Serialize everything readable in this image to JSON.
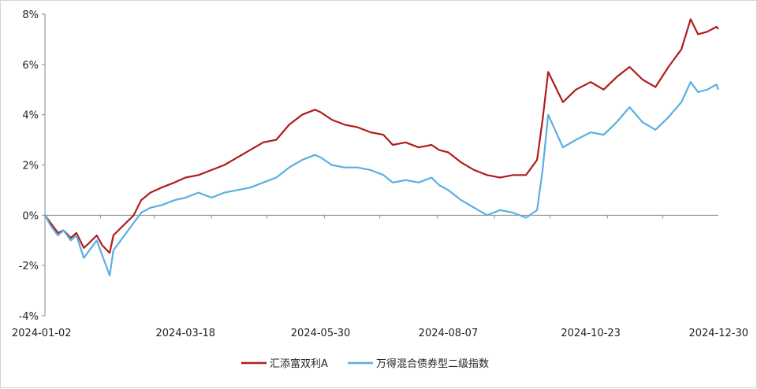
{
  "chart_data": {
    "type": "line",
    "title": "",
    "xlabel": "",
    "ylabel": "",
    "ylim": [
      -4,
      8
    ],
    "yticks": [
      -4,
      -2,
      0,
      2,
      4,
      6,
      8
    ],
    "ytick_labels": [
      "-4%",
      "-2%",
      "0%",
      "2%",
      "4%",
      "6%",
      "8%"
    ],
    "xlim": [
      "2024-01-02",
      "2024-12-31"
    ],
    "xticks": [
      {
        "date": "2024-01-02",
        "label": "2024-01-02"
      },
      {
        "date": "2024-03-18",
        "label": "2024-03-18"
      },
      {
        "date": "2024-05-30",
        "label": "2024-05-30"
      },
      {
        "date": "2024-08-07",
        "label": "2024-08-07"
      },
      {
        "date": "2024-10-23",
        "label": "2024-10-23"
      },
      {
        "date": "2024-12-30",
        "label": "2024-12-30"
      }
    ],
    "grid": false,
    "legend_position": "bottom",
    "series": [
      {
        "name": "汇添富双利A",
        "color": "#b01c1c",
        "points": [
          [
            "2024-01-02",
            0.0
          ],
          [
            "2024-01-05",
            -0.3
          ],
          [
            "2024-01-09",
            -0.7
          ],
          [
            "2024-01-12",
            -0.6
          ],
          [
            "2024-01-16",
            -0.9
          ],
          [
            "2024-01-19",
            -0.7
          ],
          [
            "2024-01-23",
            -1.3
          ],
          [
            "2024-01-26",
            -1.1
          ],
          [
            "2024-01-30",
            -0.8
          ],
          [
            "2024-02-02",
            -1.2
          ],
          [
            "2024-02-06",
            -1.5
          ],
          [
            "2024-02-08",
            -0.8
          ],
          [
            "2024-02-19",
            0.0
          ],
          [
            "2024-02-23",
            0.6
          ],
          [
            "2024-02-28",
            0.9
          ],
          [
            "2024-03-05",
            1.1
          ],
          [
            "2024-03-12",
            1.3
          ],
          [
            "2024-03-18",
            1.5
          ],
          [
            "2024-03-25",
            1.6
          ],
          [
            "2024-04-01",
            1.8
          ],
          [
            "2024-04-08",
            2.0
          ],
          [
            "2024-04-15",
            2.3
          ],
          [
            "2024-04-22",
            2.6
          ],
          [
            "2024-04-29",
            2.9
          ],
          [
            "2024-05-06",
            3.0
          ],
          [
            "2024-05-13",
            3.6
          ],
          [
            "2024-05-20",
            4.0
          ],
          [
            "2024-05-27",
            4.2
          ],
          [
            "2024-05-30",
            4.1
          ],
          [
            "2024-06-05",
            3.8
          ],
          [
            "2024-06-12",
            3.6
          ],
          [
            "2024-06-19",
            3.5
          ],
          [
            "2024-06-26",
            3.3
          ],
          [
            "2024-07-03",
            3.2
          ],
          [
            "2024-07-08",
            2.8
          ],
          [
            "2024-07-15",
            2.9
          ],
          [
            "2024-07-22",
            2.7
          ],
          [
            "2024-07-29",
            2.8
          ],
          [
            "2024-08-02",
            2.6
          ],
          [
            "2024-08-07",
            2.5
          ],
          [
            "2024-08-14",
            2.1
          ],
          [
            "2024-08-21",
            1.8
          ],
          [
            "2024-08-28",
            1.6
          ],
          [
            "2024-09-04",
            1.5
          ],
          [
            "2024-09-11",
            1.6
          ],
          [
            "2024-09-18",
            1.6
          ],
          [
            "2024-09-24",
            2.2
          ],
          [
            "2024-09-27",
            3.8
          ],
          [
            "2024-09-30",
            5.7
          ],
          [
            "2024-10-08",
            4.5
          ],
          [
            "2024-10-15",
            5.0
          ],
          [
            "2024-10-23",
            5.3
          ],
          [
            "2024-10-30",
            5.0
          ],
          [
            "2024-11-06",
            5.5
          ],
          [
            "2024-11-13",
            5.9
          ],
          [
            "2024-11-20",
            5.4
          ],
          [
            "2024-11-27",
            5.1
          ],
          [
            "2024-12-04",
            5.9
          ],
          [
            "2024-12-11",
            6.6
          ],
          [
            "2024-12-16",
            7.8
          ],
          [
            "2024-12-20",
            7.2
          ],
          [
            "2024-12-25",
            7.3
          ],
          [
            "2024-12-30",
            7.5
          ],
          [
            "2024-12-31",
            7.4
          ]
        ]
      },
      {
        "name": "万得混合债券型二级指数",
        "color": "#5aafe0",
        "points": [
          [
            "2024-01-02",
            0.0
          ],
          [
            "2024-01-05",
            -0.4
          ],
          [
            "2024-01-09",
            -0.8
          ],
          [
            "2024-01-12",
            -0.6
          ],
          [
            "2024-01-16",
            -1.0
          ],
          [
            "2024-01-19",
            -0.8
          ],
          [
            "2024-01-23",
            -1.7
          ],
          [
            "2024-01-26",
            -1.4
          ],
          [
            "2024-01-30",
            -1.0
          ],
          [
            "2024-02-02",
            -1.6
          ],
          [
            "2024-02-06",
            -2.4
          ],
          [
            "2024-02-08",
            -1.4
          ],
          [
            "2024-02-19",
            -0.3
          ],
          [
            "2024-02-23",
            0.1
          ],
          [
            "2024-02-28",
            0.3
          ],
          [
            "2024-03-05",
            0.4
          ],
          [
            "2024-03-12",
            0.6
          ],
          [
            "2024-03-18",
            0.7
          ],
          [
            "2024-03-25",
            0.9
          ],
          [
            "2024-04-01",
            0.7
          ],
          [
            "2024-04-08",
            0.9
          ],
          [
            "2024-04-15",
            1.0
          ],
          [
            "2024-04-22",
            1.1
          ],
          [
            "2024-04-29",
            1.3
          ],
          [
            "2024-05-06",
            1.5
          ],
          [
            "2024-05-13",
            1.9
          ],
          [
            "2024-05-20",
            2.2
          ],
          [
            "2024-05-27",
            2.4
          ],
          [
            "2024-05-30",
            2.3
          ],
          [
            "2024-06-05",
            2.0
          ],
          [
            "2024-06-12",
            1.9
          ],
          [
            "2024-06-19",
            1.9
          ],
          [
            "2024-06-26",
            1.8
          ],
          [
            "2024-07-03",
            1.6
          ],
          [
            "2024-07-08",
            1.3
          ],
          [
            "2024-07-15",
            1.4
          ],
          [
            "2024-07-22",
            1.3
          ],
          [
            "2024-07-29",
            1.5
          ],
          [
            "2024-08-02",
            1.2
          ],
          [
            "2024-08-07",
            1.0
          ],
          [
            "2024-08-14",
            0.6
          ],
          [
            "2024-08-21",
            0.3
          ],
          [
            "2024-08-28",
            0.0
          ],
          [
            "2024-09-04",
            0.2
          ],
          [
            "2024-09-11",
            0.1
          ],
          [
            "2024-09-18",
            -0.1
          ],
          [
            "2024-09-24",
            0.2
          ],
          [
            "2024-09-27",
            1.8
          ],
          [
            "2024-09-30",
            4.0
          ],
          [
            "2024-10-08",
            2.7
          ],
          [
            "2024-10-15",
            3.0
          ],
          [
            "2024-10-23",
            3.3
          ],
          [
            "2024-10-30",
            3.2
          ],
          [
            "2024-11-06",
            3.7
          ],
          [
            "2024-11-13",
            4.3
          ],
          [
            "2024-11-20",
            3.7
          ],
          [
            "2024-11-27",
            3.4
          ],
          [
            "2024-12-04",
            3.9
          ],
          [
            "2024-12-11",
            4.5
          ],
          [
            "2024-12-16",
            5.3
          ],
          [
            "2024-12-20",
            4.9
          ],
          [
            "2024-12-25",
            5.0
          ],
          [
            "2024-12-30",
            5.2
          ],
          [
            "2024-12-31",
            5.0
          ]
        ]
      }
    ]
  }
}
